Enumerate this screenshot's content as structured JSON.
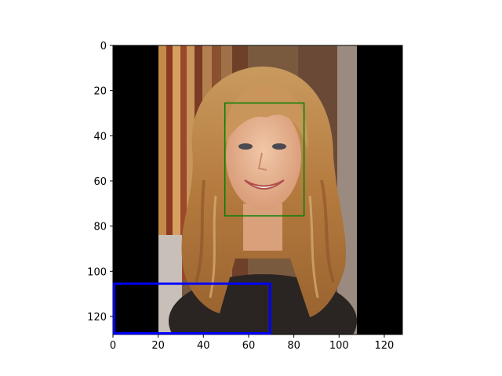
{
  "figure": {
    "x_axis": {
      "min": 0,
      "max": 128,
      "ticks": [
        0,
        20,
        40,
        60,
        80,
        100,
        120
      ],
      "orientation": "left-to-right"
    },
    "y_axis": {
      "min": 0,
      "max": 128,
      "ticks": [
        0,
        20,
        40,
        60,
        80,
        100,
        120
      ],
      "orientation": "top-to-bottom"
    },
    "image": {
      "subject": "woman-with-long-wavy-blonde-hair-smiling",
      "content_extent_x": [
        20,
        108
      ],
      "padding_color": "#000000"
    },
    "boxes": [
      {
        "name": "face-bounding-box",
        "color": "#008000",
        "x0": 49.5,
        "y0": 25.5,
        "x1": 84.5,
        "y1": 75.5
      },
      {
        "name": "lower-left-bounding-box",
        "color": "#0000ff",
        "x0": 0.5,
        "y0": 105.5,
        "x1": 69.5,
        "y1": 127.5
      }
    ]
  }
}
